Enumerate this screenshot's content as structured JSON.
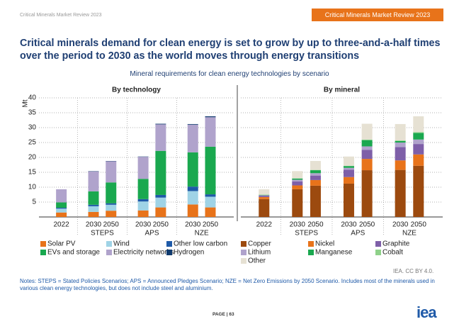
{
  "header": {
    "left": "Critical Minerals Market Review 2023",
    "badge": "Critical Minerals Market Review 2023"
  },
  "title": "Critical minerals demand for clean energy is set to grow by up to three-and-a-half times over the period to 2030 as the world moves through energy transitions",
  "figure_title": "Mineral requirements for clean energy technologies by scenario",
  "chart_data": [
    {
      "type": "stacked_bar",
      "title": "By technology",
      "ylabel": "Mt",
      "ylim": [
        0,
        40
      ],
      "yticks": [
        5,
        10,
        15,
        20,
        25,
        30,
        35,
        40
      ],
      "grid": true,
      "categories": [
        "2022",
        "2030",
        "2050",
        "2030",
        "2050",
        "2030",
        "2050"
      ],
      "group_labels": [
        "STEPS",
        "APS",
        "NZE"
      ],
      "series": [
        {
          "name": "Solar PV",
          "color": "#e8731a",
          "values": [
            1.5,
            1.7,
            2.1,
            2.2,
            3.2,
            4.2,
            3.2
          ]
        },
        {
          "name": "Wind",
          "color": "#9fd3e6",
          "values": [
            1.3,
            1.9,
            2.0,
            3.0,
            3.3,
            4.5,
            3.6
          ]
        },
        {
          "name": "Other low carbon",
          "color": "#1f5aa8",
          "values": [
            0.3,
            0.5,
            0.5,
            0.8,
            0.9,
            1.5,
            0.8
          ]
        },
        {
          "name": "EVs and storage",
          "color": "#1aa84f",
          "values": [
            1.8,
            4.5,
            7.0,
            6.8,
            14.8,
            11.5,
            16.0
          ]
        },
        {
          "name": "Electricity networks",
          "color": "#b0a3cc",
          "values": [
            4.4,
            6.7,
            7.1,
            7.4,
            8.9,
            9.3,
            9.9
          ]
        },
        {
          "name": "Hydrogen",
          "color": "#0f3a6e",
          "values": [
            0.0,
            0.1,
            0.1,
            0.1,
            0.2,
            0.2,
            0.3
          ]
        }
      ]
    },
    {
      "type": "stacked_bar",
      "title": "By mineral",
      "ylim": [
        0,
        40
      ],
      "yticks": [
        5,
        10,
        15,
        20,
        25,
        30,
        35,
        40
      ],
      "grid": true,
      "categories": [
        "2022",
        "2030",
        "2050",
        "2030",
        "2050",
        "2030",
        "2050"
      ],
      "group_labels": [
        "STEPS",
        "APS",
        "NZE"
      ],
      "series": [
        {
          "name": "Copper",
          "color": "#9c4a0f",
          "values": [
            6.0,
            9.3,
            10.5,
            11.2,
            15.7,
            15.8,
            17.2
          ]
        },
        {
          "name": "Nickel",
          "color": "#e8731a",
          "values": [
            0.7,
            1.3,
            1.9,
            2.2,
            3.8,
            3.2,
            3.8
          ]
        },
        {
          "name": "Graphite",
          "color": "#7e5fa8",
          "values": [
            0.5,
            1.3,
            1.5,
            2.5,
            3.0,
            4.5,
            3.5
          ]
        },
        {
          "name": "Lithium",
          "color": "#b0a3cc",
          "values": [
            0.1,
            0.6,
            0.8,
            0.6,
            1.2,
            1.5,
            1.5
          ]
        },
        {
          "name": "Manganese",
          "color": "#1aa84f",
          "values": [
            0.1,
            0.4,
            1.0,
            0.6,
            2.1,
            0.5,
            2.2
          ]
        },
        {
          "name": "Cobalt",
          "color": "#8fd18a",
          "values": [
            0.1,
            0.1,
            0.1,
            0.1,
            0.2,
            0.2,
            0.3
          ]
        },
        {
          "name": "Other",
          "color": "#e6e1d3",
          "values": [
            1.8,
            2.4,
            3.0,
            3.1,
            5.3,
            5.5,
            5.3
          ]
        }
      ]
    }
  ],
  "source": "IEA. CC BY 4.0.",
  "notes": "Notes: STEPS = Stated Policies Scenarios; APS = Announced Pledges Scenario; NZE = Net Zero Emissions by 2050 Scenario. Includes most of the minerals used in various clean energy technologies, but does not include steel and aluminium.",
  "footer": {
    "page": "PAGE | 63",
    "logo": "iea"
  }
}
